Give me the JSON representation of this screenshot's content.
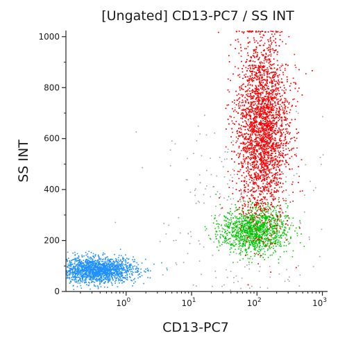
{
  "chart_data": {
    "type": "scatter",
    "title": "[Ungated] CD13-PC7 / SS INT",
    "xlabel": "CD13-PC7",
    "ylabel": "SS INT",
    "x_scale": "log",
    "xlim": [
      0.12,
      1200
    ],
    "ylim": [
      0,
      1024
    ],
    "x_ticks": [
      {
        "value": 1,
        "base": "10",
        "exp": "0"
      },
      {
        "value": 10,
        "base": "10",
        "exp": "1"
      },
      {
        "value": 100,
        "base": "10",
        "exp": "2"
      },
      {
        "value": 1000,
        "base": "10",
        "exp": "3"
      }
    ],
    "y_ticks": [
      {
        "value": 0,
        "label": "0"
      },
      {
        "value": 200,
        "label": "200"
      },
      {
        "value": 400,
        "label": "400"
      },
      {
        "value": 600,
        "label": "600"
      },
      {
        "value": 800,
        "label": "800"
      },
      {
        "value": 1000,
        "label": "1000"
      }
    ],
    "grid": false,
    "populations": [
      {
        "color": "#ff0000",
        "center_x": 120,
        "center_y": 640,
        "spread_log_x": 0.2,
        "spread_y": 180,
        "approx_count": 9000
      },
      {
        "color": "#00c800",
        "center_x": 90,
        "center_y": 240,
        "spread_log_x": 0.25,
        "spread_y": 45,
        "approx_count": 2500
      },
      {
        "color": "#1e90ff",
        "center_x": 0.35,
        "center_y": 85,
        "spread_log_x": 0.3,
        "spread_y": 25,
        "approx_count": 3500
      },
      {
        "color": "#a0a0a0",
        "center_x": 60,
        "center_y": 300,
        "spread_log_x": 0.6,
        "spread_y": 200,
        "approx_count": 600
      }
    ]
  }
}
